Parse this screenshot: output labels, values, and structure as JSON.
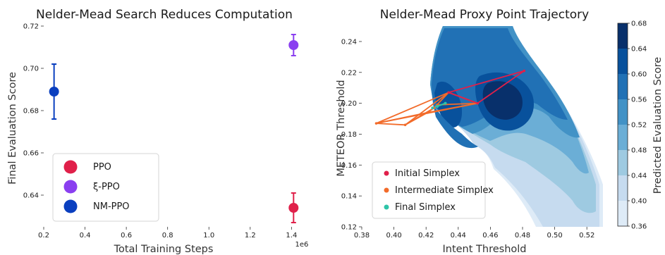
{
  "chart_data": [
    {
      "type": "scatter",
      "title": "Nelder-Mead Search Reduces Computation",
      "xlabel": "Total Training Steps",
      "ylabel": "Final Evaluation Score",
      "x_multiplier_label": "1e6",
      "xlim": [
        0.2,
        1.45
      ],
      "ylim": [
        0.625,
        0.72
      ],
      "xticks": [
        "0.2",
        "0.4",
        "0.6",
        "0.8",
        "1.0",
        "1.2",
        "1.4"
      ],
      "yticks": [
        "0.64",
        "0.66",
        "0.68",
        "0.70",
        "0.72"
      ],
      "legend_position": "lower-left",
      "series": [
        {
          "name": "PPO",
          "color": "#e0204a",
          "x": [
            1.41
          ],
          "y": [
            0.634
          ],
          "err": [
            0.007
          ]
        },
        {
          "name": "ξ-PPO",
          "color": "#8a3ff0",
          "x": [
            1.41
          ],
          "y": [
            0.711
          ],
          "err": [
            0.005
          ]
        },
        {
          "name": "NM-PPO",
          "color": "#0a3fbf",
          "x": [
            0.25
          ],
          "y": [
            0.689
          ],
          "err": [
            0.013
          ]
        }
      ]
    },
    {
      "type": "contour",
      "title": "Nelder-Mead Proxy Point Trajectory",
      "xlabel": "Intent Threshold",
      "ylabel": "METEOR Threshold",
      "xlim": [
        0.38,
        0.53
      ],
      "ylim": [
        0.12,
        0.25
      ],
      "xticks": [
        "0.38",
        "0.40",
        "0.42",
        "0.44",
        "0.46",
        "0.48",
        "0.50",
        "0.52"
      ],
      "yticks": [
        "0.12",
        "0.14",
        "0.16",
        "0.18",
        "0.20",
        "0.22",
        "0.24"
      ],
      "colorbar_label": "Predicted Evaluation Score",
      "colorbar_ticks": [
        "0.36",
        "0.40",
        "0.44",
        "0.48",
        "0.52",
        "0.56",
        "0.60",
        "0.64",
        "0.68"
      ],
      "colorbar_levels": [
        0.36,
        0.4,
        0.44,
        0.48,
        0.52,
        0.56,
        0.6,
        0.64,
        0.68
      ],
      "colormap": [
        "#f7fbff",
        "#deebf7",
        "#c6dbef",
        "#9ecae1",
        "#6baed6",
        "#4292c6",
        "#2171b5",
        "#08519c",
        "#08306b"
      ],
      "legend_position": "lower-left",
      "series": [
        {
          "name": "Initial Simplex",
          "color": "#e0204a",
          "x": [
            0.434,
            0.481,
            0.452
          ],
          "y": [
            0.207,
            0.221,
            0.2
          ]
        },
        {
          "name": "Intermediate Simplex",
          "color": "#f26b2a",
          "x": [
            0.434,
            0.452,
            0.389,
            0.407,
            0.421,
            0.425,
            0.427
          ],
          "y": [
            0.207,
            0.2,
            0.187,
            0.186,
            0.194,
            0.197,
            0.199
          ]
        },
        {
          "name": "Final Simplex",
          "color": "#2ec4a8",
          "x": [
            0.424,
            0.427,
            0.432
          ],
          "y": [
            0.197,
            0.198,
            0.2
          ]
        }
      ]
    }
  ]
}
